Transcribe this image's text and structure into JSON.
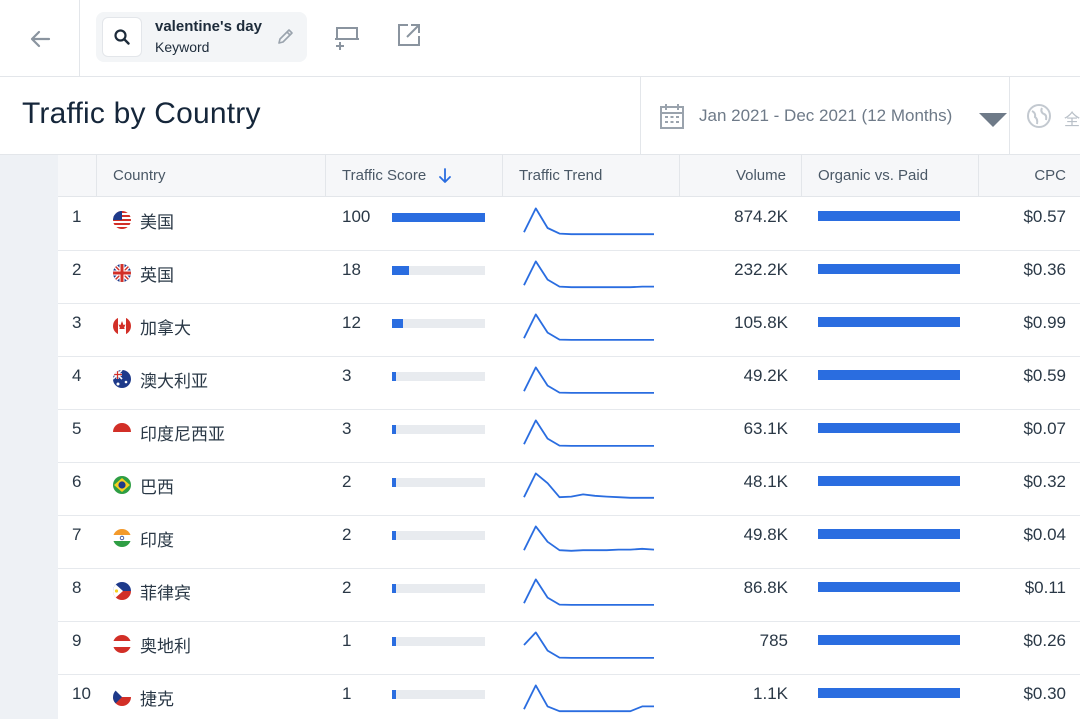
{
  "topbar": {
    "keyword": "valentine's day",
    "keyword_type": "Keyword"
  },
  "header": {
    "title": "Traffic by Country",
    "date_range": "Jan 2021 - Dec 2021 (12 Months)",
    "region_label": "全"
  },
  "table": {
    "columns": [
      "Country",
      "Traffic Score",
      "Traffic Trend",
      "Volume",
      "Organic vs. Paid",
      "CPC"
    ],
    "sort_icon": "arrow-down-icon",
    "colors": {
      "bar": "#2a6de0",
      "track": "#e8ebef"
    },
    "rows": [
      {
        "rank": "1",
        "flag": "us",
        "country": "美国",
        "score": "100",
        "score_fraction": 1.0,
        "volume": "874.2K",
        "cpc": "$0.57",
        "trend": [
          0.1,
          0.95,
          0.25,
          0.05,
          0.03,
          0.03,
          0.03,
          0.03,
          0.03,
          0.03,
          0.03,
          0.03
        ]
      },
      {
        "rank": "2",
        "flag": "gb",
        "country": "英国",
        "score": "18",
        "score_fraction": 0.18,
        "volume": "232.2K",
        "cpc": "$0.36",
        "trend": [
          0.1,
          0.95,
          0.3,
          0.05,
          0.03,
          0.03,
          0.03,
          0.03,
          0.03,
          0.03,
          0.05,
          0.05
        ]
      },
      {
        "rank": "3",
        "flag": "ca",
        "country": "加拿大",
        "score": "12",
        "score_fraction": 0.12,
        "volume": "105.8K",
        "cpc": "$0.99",
        "trend": [
          0.1,
          0.95,
          0.3,
          0.05,
          0.04,
          0.04,
          0.04,
          0.04,
          0.04,
          0.04,
          0.04,
          0.04
        ]
      },
      {
        "rank": "4",
        "flag": "au",
        "country": "澳大利亚",
        "score": "3",
        "score_fraction": 0.03,
        "volume": "49.2K",
        "cpc": "$0.59",
        "trend": [
          0.1,
          0.95,
          0.3,
          0.05,
          0.04,
          0.04,
          0.04,
          0.04,
          0.04,
          0.04,
          0.04,
          0.04
        ]
      },
      {
        "rank": "5",
        "flag": "id",
        "country": "印度尼西亚",
        "score": "3",
        "score_fraction": 0.03,
        "volume": "63.1K",
        "cpc": "$0.07",
        "trend": [
          0.1,
          0.95,
          0.3,
          0.05,
          0.04,
          0.04,
          0.04,
          0.04,
          0.04,
          0.04,
          0.04,
          0.04
        ]
      },
      {
        "rank": "6",
        "flag": "br",
        "country": "巴西",
        "score": "2",
        "score_fraction": 0.02,
        "volume": "48.1K",
        "cpc": "$0.32",
        "trend": [
          0.1,
          0.95,
          0.6,
          0.1,
          0.12,
          0.2,
          0.15,
          0.12,
          0.1,
          0.08,
          0.08,
          0.08
        ]
      },
      {
        "rank": "7",
        "flag": "in",
        "country": "印度",
        "score": "2",
        "score_fraction": 0.02,
        "volume": "49.8K",
        "cpc": "$0.04",
        "trend": [
          0.1,
          0.95,
          0.4,
          0.1,
          0.08,
          0.1,
          0.1,
          0.1,
          0.12,
          0.12,
          0.15,
          0.12
        ]
      },
      {
        "rank": "8",
        "flag": "ph",
        "country": "菲律宾",
        "score": "2",
        "score_fraction": 0.02,
        "volume": "86.8K",
        "cpc": "$0.11",
        "trend": [
          0.1,
          0.95,
          0.3,
          0.05,
          0.04,
          0.04,
          0.04,
          0.04,
          0.04,
          0.04,
          0.04,
          0.04
        ]
      },
      {
        "rank": "9",
        "flag": "at",
        "country": "奥地利",
        "score": "1",
        "score_fraction": 0.01,
        "volume": "785",
        "cpc": "$0.26",
        "trend": [
          0.5,
          0.95,
          0.3,
          0.05,
          0.04,
          0.04,
          0.04,
          0.04,
          0.04,
          0.04,
          0.04,
          0.04
        ]
      },
      {
        "rank": "10",
        "flag": "cz",
        "country": "捷克",
        "score": "1",
        "score_fraction": 0.01,
        "volume": "1.1K",
        "cpc": "$0.30",
        "trend": [
          0.1,
          0.95,
          0.2,
          0.03,
          0.03,
          0.03,
          0.03,
          0.03,
          0.03,
          0.03,
          0.2,
          0.2
        ]
      }
    ]
  }
}
